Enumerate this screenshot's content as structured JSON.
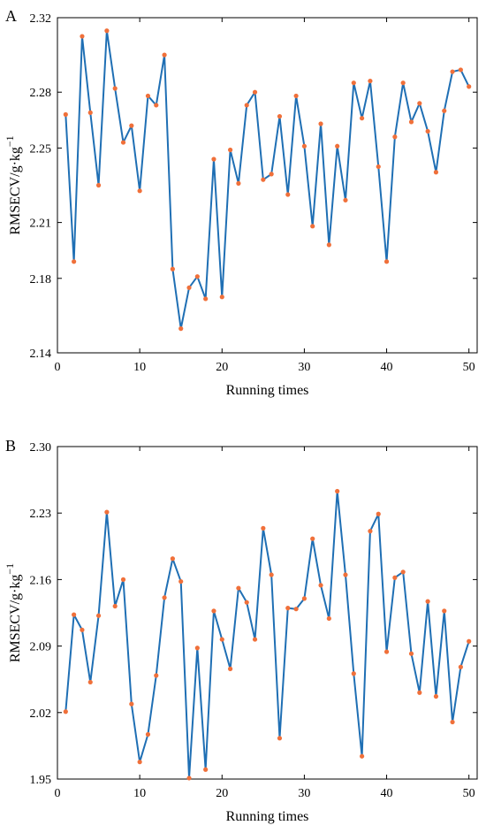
{
  "chart_data": [
    {
      "type": "line",
      "panel_label": "A",
      "xlabel": "Running times",
      "ylabel": "RMSECV/g·kg",
      "ylabel_sup": "−1",
      "xlim": [
        0,
        51
      ],
      "ylim": [
        2.14,
        2.32
      ],
      "xticks": [
        0,
        10,
        20,
        30,
        40,
        50
      ],
      "yticks": [
        2.14,
        2.18,
        2.21,
        2.25,
        2.28,
        2.32
      ],
      "ytick_labels": [
        "2.14",
        "2.18",
        "2.21",
        "2.25",
        "2.28",
        "2.32"
      ],
      "grid": false,
      "line_color": "#1f6fb4",
      "marker_color": "#f0703a",
      "x": [
        1,
        2,
        3,
        4,
        5,
        6,
        7,
        8,
        9,
        10,
        11,
        12,
        13,
        14,
        15,
        16,
        17,
        18,
        19,
        20,
        21,
        22,
        23,
        24,
        25,
        26,
        27,
        28,
        29,
        30,
        31,
        32,
        33,
        34,
        35,
        36,
        37,
        38,
        39,
        40,
        41,
        42,
        43,
        44,
        45,
        46,
        47,
        48,
        49,
        50
      ],
      "values": [
        2.268,
        2.189,
        2.31,
        2.269,
        2.23,
        2.313,
        2.282,
        2.253,
        2.262,
        2.227,
        2.278,
        2.273,
        2.3,
        2.185,
        2.153,
        2.175,
        2.181,
        2.169,
        2.244,
        2.17,
        2.249,
        2.231,
        2.273,
        2.28,
        2.233,
        2.236,
        2.267,
        2.225,
        2.278,
        2.251,
        2.208,
        2.263,
        2.198,
        2.251,
        2.222,
        2.285,
        2.266,
        2.286,
        2.24,
        2.189,
        2.256,
        2.285,
        2.264,
        2.274,
        2.259,
        2.237,
        2.27,
        2.291,
        2.292,
        2.283
      ]
    },
    {
      "type": "line",
      "panel_label": "B",
      "xlabel": "Running times",
      "ylabel": "RMSECV/g·kg",
      "ylabel_sup": "−1",
      "xlim": [
        0,
        51
      ],
      "ylim": [
        1.95,
        2.3
      ],
      "xticks": [
        0,
        10,
        20,
        30,
        40,
        50
      ],
      "yticks": [
        1.95,
        2.02,
        2.09,
        2.16,
        2.23,
        2.3
      ],
      "ytick_labels": [
        "1.95",
        "2.02",
        "2.09",
        "2.16",
        "2.23",
        "2.30"
      ],
      "grid": false,
      "line_color": "#1f6fb4",
      "marker_color": "#f0703a",
      "x": [
        1,
        2,
        3,
        4,
        5,
        6,
        7,
        8,
        9,
        10,
        11,
        12,
        13,
        14,
        15,
        16,
        17,
        18,
        19,
        20,
        21,
        22,
        23,
        24,
        25,
        26,
        27,
        28,
        29,
        30,
        31,
        32,
        33,
        34,
        35,
        36,
        37,
        38,
        39,
        40,
        41,
        42,
        43,
        44,
        45,
        46,
        47,
        48,
        49,
        50
      ],
      "values": [
        2.021,
        2.123,
        2.107,
        2.052,
        2.122,
        2.231,
        2.132,
        2.16,
        2.029,
        1.968,
        1.997,
        2.059,
        2.141,
        2.182,
        2.158,
        1.951,
        2.088,
        1.96,
        2.127,
        2.097,
        2.066,
        2.151,
        2.136,
        2.097,
        2.214,
        2.165,
        1.993,
        2.13,
        2.129,
        2.14,
        2.203,
        2.154,
        2.119,
        2.253,
        2.165,
        2.061,
        1.974,
        2.211,
        2.229,
        2.084,
        2.162,
        2.168,
        2.082,
        2.041,
        2.137,
        2.037,
        2.127,
        2.01,
        2.068,
        2.095
      ]
    }
  ]
}
